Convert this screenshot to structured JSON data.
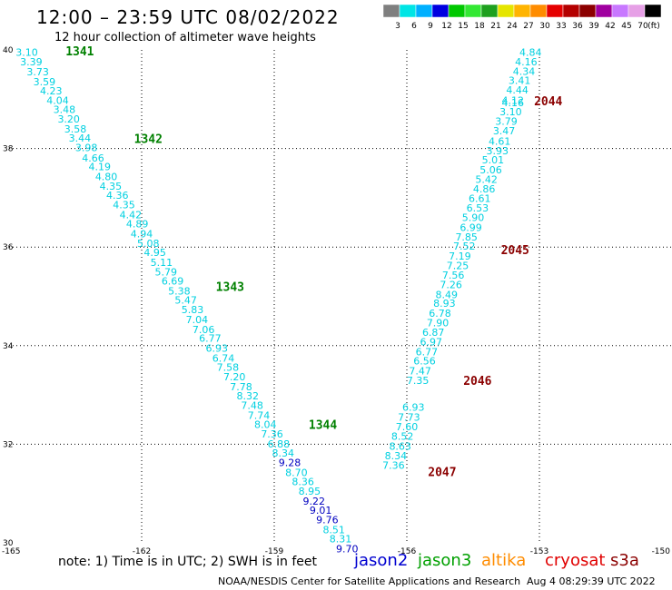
{
  "header": {
    "title": "12:00 – 23:59 UTC 08/02/2022",
    "subtitle": "12 hour collection of altimeter wave heights"
  },
  "colorbar": {
    "colors": [
      "#7f7f7f",
      "#00e5e5",
      "#00b0ff",
      "#0000e0",
      "#00c800",
      "#33e833",
      "#1ea01e",
      "#e5e500",
      "#ffb400",
      "#ff8c00",
      "#e50000",
      "#b40000",
      "#8c0000",
      "#a000a0",
      "#c878ff",
      "#e6a0e6",
      "#000000"
    ],
    "labels": [
      "3",
      "6",
      "9",
      "12",
      "15",
      "18",
      "21",
      "24",
      "27",
      "30",
      "33",
      "36",
      "39",
      "42",
      "45",
      "70",
      "(ft)"
    ]
  },
  "footer": {
    "note": "note: 1) Time is in UTC; 2) SWH is in feet",
    "credit": "NOAA/NESDIS Center for Satellite Applications and Research",
    "timestamp": "Aug  4 08:29:39 UTC 2022"
  },
  "satellites": [
    {
      "name": "jason2",
      "color": "#0000d0"
    },
    {
      "name": "jason3",
      "color": "#00a000"
    },
    {
      "name": "altika",
      "color": "#ff8c00"
    },
    {
      "name": "cryosat",
      "color": "#e00000"
    },
    {
      "name": "s3a",
      "color": "#8b0000"
    }
  ],
  "chart_data": {
    "type": "scatter",
    "xlim": [
      -165,
      -150
    ],
    "ylim": [
      30,
      40
    ],
    "x_ticks": [
      "-165",
      "-162",
      "-159",
      "-156",
      "-153",
      "-150"
    ],
    "y_ticks": [
      "30",
      "32",
      "34",
      "36",
      "38",
      "40"
    ],
    "grid": true,
    "colors": {
      "cyan": "#00d0e0",
      "blue": "#0000c0",
      "green": "#008000",
      "darkred": "#8b0000"
    },
    "tracks": [
      {
        "name": "west-track",
        "points": [
          {
            "x": -164.6,
            "y": 39.95,
            "v": "3.10",
            "c": "cyan"
          },
          {
            "x": -164.5,
            "y": 39.76,
            "v": "3.39",
            "c": "cyan"
          },
          {
            "x": -164.35,
            "y": 39.56,
            "v": "3.73",
            "c": "cyan"
          },
          {
            "x": -164.2,
            "y": 39.36,
            "v": "3.59",
            "c": "cyan"
          },
          {
            "x": -164.05,
            "y": 39.17,
            "v": "4.23",
            "c": "cyan"
          },
          {
            "x": -163.9,
            "y": 38.98,
            "v": "4.04",
            "c": "cyan"
          },
          {
            "x": -163.75,
            "y": 38.79,
            "v": "3.48",
            "c": "cyan"
          },
          {
            "x": -163.65,
            "y": 38.6,
            "v": "3.20",
            "c": "cyan"
          },
          {
            "x": -163.5,
            "y": 38.4,
            "v": "3.58",
            "c": "cyan"
          },
          {
            "x": -163.4,
            "y": 38.21,
            "v": "3.44",
            "c": "cyan"
          },
          {
            "x": -163.25,
            "y": 38.02,
            "v": "3.98",
            "c": "cyan"
          },
          {
            "x": -163.1,
            "y": 37.81,
            "v": "4.66",
            "c": "cyan"
          },
          {
            "x": -162.95,
            "y": 37.63,
            "v": "4.19",
            "c": "cyan"
          },
          {
            "x": -162.8,
            "y": 37.43,
            "v": "4.80",
            "c": "cyan"
          },
          {
            "x": -162.7,
            "y": 37.24,
            "v": "4.35",
            "c": "cyan"
          },
          {
            "x": -162.55,
            "y": 37.05,
            "v": "4.36",
            "c": "cyan"
          },
          {
            "x": -162.4,
            "y": 36.86,
            "v": "4.35",
            "c": "cyan"
          },
          {
            "x": -162.25,
            "y": 36.66,
            "v": "4.42",
            "c": "cyan"
          },
          {
            "x": -162.1,
            "y": 36.47,
            "v": "4.89",
            "c": "cyan"
          },
          {
            "x": -162.0,
            "y": 36.27,
            "v": "4.94",
            "c": "cyan"
          },
          {
            "x": -161.85,
            "y": 36.08,
            "v": "5.08",
            "c": "cyan"
          },
          {
            "x": -161.7,
            "y": 35.89,
            "v": "4.95",
            "c": "cyan"
          },
          {
            "x": -161.55,
            "y": 35.69,
            "v": "5.11",
            "c": "cyan"
          },
          {
            "x": -161.45,
            "y": 35.5,
            "v": "5.79",
            "c": "cyan"
          },
          {
            "x": -161.3,
            "y": 35.31,
            "v": "6.69",
            "c": "cyan"
          },
          {
            "x": -161.15,
            "y": 35.11,
            "v": "5.38",
            "c": "cyan"
          },
          {
            "x": -161.0,
            "y": 34.93,
            "v": "5.47",
            "c": "cyan"
          },
          {
            "x": -160.85,
            "y": 34.73,
            "v": "5.83",
            "c": "cyan"
          },
          {
            "x": -160.75,
            "y": 34.53,
            "v": "7.04",
            "c": "cyan"
          },
          {
            "x": -160.6,
            "y": 34.33,
            "v": "7.06",
            "c": "cyan"
          },
          {
            "x": -160.45,
            "y": 34.15,
            "v": "6.77",
            "c": "cyan"
          },
          {
            "x": -160.3,
            "y": 33.95,
            "v": "6.93",
            "c": "cyan"
          },
          {
            "x": -160.15,
            "y": 33.75,
            "v": "6.74",
            "c": "cyan"
          },
          {
            "x": -160.05,
            "y": 33.56,
            "v": "7.58",
            "c": "cyan"
          },
          {
            "x": -159.9,
            "y": 33.37,
            "v": "7.20",
            "c": "cyan"
          },
          {
            "x": -159.75,
            "y": 33.17,
            "v": "7.78",
            "c": "cyan"
          },
          {
            "x": -159.6,
            "y": 32.98,
            "v": "8.32",
            "c": "cyan"
          },
          {
            "x": -159.5,
            "y": 32.79,
            "v": "7.48",
            "c": "cyan"
          },
          {
            "x": -159.35,
            "y": 32.59,
            "v": "7.74",
            "c": "cyan"
          },
          {
            "x": -159.2,
            "y": 32.4,
            "v": "8.04",
            "c": "cyan"
          },
          {
            "x": -159.05,
            "y": 32.21,
            "v": "7.36",
            "c": "cyan"
          },
          {
            "x": -158.9,
            "y": 32.01,
            "v": "6.88",
            "c": "cyan"
          },
          {
            "x": -158.8,
            "y": 31.82,
            "v": "8.34",
            "c": "cyan"
          },
          {
            "x": -158.65,
            "y": 31.63,
            "v": "9.28",
            "c": "blue"
          },
          {
            "x": -158.5,
            "y": 31.43,
            "v": "8.70",
            "c": "cyan"
          },
          {
            "x": -158.35,
            "y": 31.24,
            "v": "8.36",
            "c": "cyan"
          },
          {
            "x": -158.2,
            "y": 31.05,
            "v": "8.95",
            "c": "cyan"
          },
          {
            "x": -158.1,
            "y": 30.85,
            "v": "9.22",
            "c": "blue"
          },
          {
            "x": -157.95,
            "y": 30.66,
            "v": "9.01",
            "c": "blue"
          },
          {
            "x": -157.8,
            "y": 30.47,
            "v": "9.76",
            "c": "blue"
          },
          {
            "x": -157.65,
            "y": 30.27,
            "v": "8.51",
            "c": "cyan"
          },
          {
            "x": -157.5,
            "y": 30.08,
            "v": "8.31",
            "c": "cyan"
          },
          {
            "x": -157.35,
            "y": 29.88,
            "v": "9.70",
            "c": "blue"
          }
        ]
      },
      {
        "name": "east-track",
        "points": [
          {
            "x": -153.2,
            "y": 39.95,
            "v": "4.84",
            "c": "cyan"
          },
          {
            "x": -153.3,
            "y": 39.76,
            "v": "4.16",
            "c": "cyan"
          },
          {
            "x": -153.35,
            "y": 39.57,
            "v": "4.34",
            "c": "cyan"
          },
          {
            "x": -153.45,
            "y": 39.38,
            "v": "3.41",
            "c": "cyan"
          },
          {
            "x": -153.5,
            "y": 39.19,
            "v": "4.44",
            "c": "cyan"
          },
          {
            "x": -153.6,
            "y": 38.98,
            "v": "4.12",
            "c": "cyan"
          },
          {
            "x": -153.6,
            "y": 38.93,
            "v": "4.16",
            "c": "cyan"
          },
          {
            "x": -153.65,
            "y": 38.75,
            "v": "3.10",
            "c": "cyan"
          },
          {
            "x": -153.75,
            "y": 38.55,
            "v": "3.79",
            "c": "cyan"
          },
          {
            "x": -153.8,
            "y": 38.36,
            "v": "3.47",
            "c": "cyan"
          },
          {
            "x": -153.9,
            "y": 38.15,
            "v": "4.61",
            "c": "cyan"
          },
          {
            "x": -153.95,
            "y": 37.96,
            "v": "3.93",
            "c": "cyan"
          },
          {
            "x": -154.05,
            "y": 37.77,
            "v": "5.01",
            "c": "cyan"
          },
          {
            "x": -154.1,
            "y": 37.57,
            "v": "5.06",
            "c": "cyan"
          },
          {
            "x": -154.2,
            "y": 37.38,
            "v": "5.42",
            "c": "cyan"
          },
          {
            "x": -154.25,
            "y": 37.18,
            "v": "4.86",
            "c": "cyan"
          },
          {
            "x": -154.35,
            "y": 36.99,
            "v": "6.61",
            "c": "cyan"
          },
          {
            "x": -154.4,
            "y": 36.8,
            "v": "6.53",
            "c": "cyan"
          },
          {
            "x": -154.5,
            "y": 36.6,
            "v": "5.90",
            "c": "cyan"
          },
          {
            "x": -154.55,
            "y": 36.4,
            "v": "6.99",
            "c": "cyan"
          },
          {
            "x": -154.65,
            "y": 36.21,
            "v": "7.85",
            "c": "cyan"
          },
          {
            "x": -154.7,
            "y": 36.02,
            "v": "7.52",
            "c": "cyan"
          },
          {
            "x": -154.8,
            "y": 35.82,
            "v": "7.19",
            "c": "cyan"
          },
          {
            "x": -154.85,
            "y": 35.63,
            "v": "7.25",
            "c": "cyan"
          },
          {
            "x": -154.95,
            "y": 35.43,
            "v": "7.56",
            "c": "cyan"
          },
          {
            "x": -155.0,
            "y": 35.24,
            "v": "7.26",
            "c": "cyan"
          },
          {
            "x": -155.1,
            "y": 35.04,
            "v": "8.49",
            "c": "cyan"
          },
          {
            "x": -155.15,
            "y": 34.86,
            "v": "8.93",
            "c": "cyan"
          },
          {
            "x": -155.25,
            "y": 34.66,
            "v": "6.78",
            "c": "cyan"
          },
          {
            "x": -155.3,
            "y": 34.47,
            "v": "7.90",
            "c": "cyan"
          },
          {
            "x": -155.4,
            "y": 34.27,
            "v": "6.87",
            "c": "cyan"
          },
          {
            "x": -155.45,
            "y": 34.08,
            "v": "6.97",
            "c": "cyan"
          },
          {
            "x": -155.55,
            "y": 33.88,
            "v": "6.77",
            "c": "cyan"
          },
          {
            "x": -155.6,
            "y": 33.69,
            "v": "6.56",
            "c": "cyan"
          },
          {
            "x": -155.7,
            "y": 33.49,
            "v": "7.47",
            "c": "cyan"
          },
          {
            "x": -155.75,
            "y": 33.3,
            "v": "7.35",
            "c": "cyan"
          },
          {
            "x": -155.85,
            "y": 32.75,
            "v": "6.93",
            "c": "cyan"
          },
          {
            "x": -155.95,
            "y": 32.55,
            "v": "7.73",
            "c": "cyan"
          },
          {
            "x": -156.0,
            "y": 32.36,
            "v": "7.60",
            "c": "cyan"
          },
          {
            "x": -156.1,
            "y": 32.16,
            "v": "8.52",
            "c": "cyan"
          },
          {
            "x": -156.15,
            "y": 31.96,
            "v": "8.63",
            "c": "cyan"
          },
          {
            "x": -156.25,
            "y": 31.77,
            "v": "8.34",
            "c": "cyan"
          },
          {
            "x": -156.3,
            "y": 31.57,
            "v": "7.36",
            "c": "cyan"
          }
        ]
      }
    ],
    "pass_labels": [
      {
        "text": "1341",
        "x": -163.4,
        "y": 39.98,
        "c": "green"
      },
      {
        "text": "1342",
        "x": -161.85,
        "y": 38.2,
        "c": "green"
      },
      {
        "text": "1343",
        "x": -160.0,
        "y": 35.2,
        "c": "green"
      },
      {
        "text": "1344",
        "x": -157.9,
        "y": 32.4,
        "c": "green"
      },
      {
        "text": "2044",
        "x": -152.8,
        "y": 38.97,
        "c": "darkred"
      },
      {
        "text": "2045",
        "x": -153.55,
        "y": 35.95,
        "c": "darkred"
      },
      {
        "text": "2046",
        "x": -154.4,
        "y": 33.3,
        "c": "darkred"
      },
      {
        "text": "2047",
        "x": -155.2,
        "y": 31.45,
        "c": "darkred"
      }
    ]
  }
}
